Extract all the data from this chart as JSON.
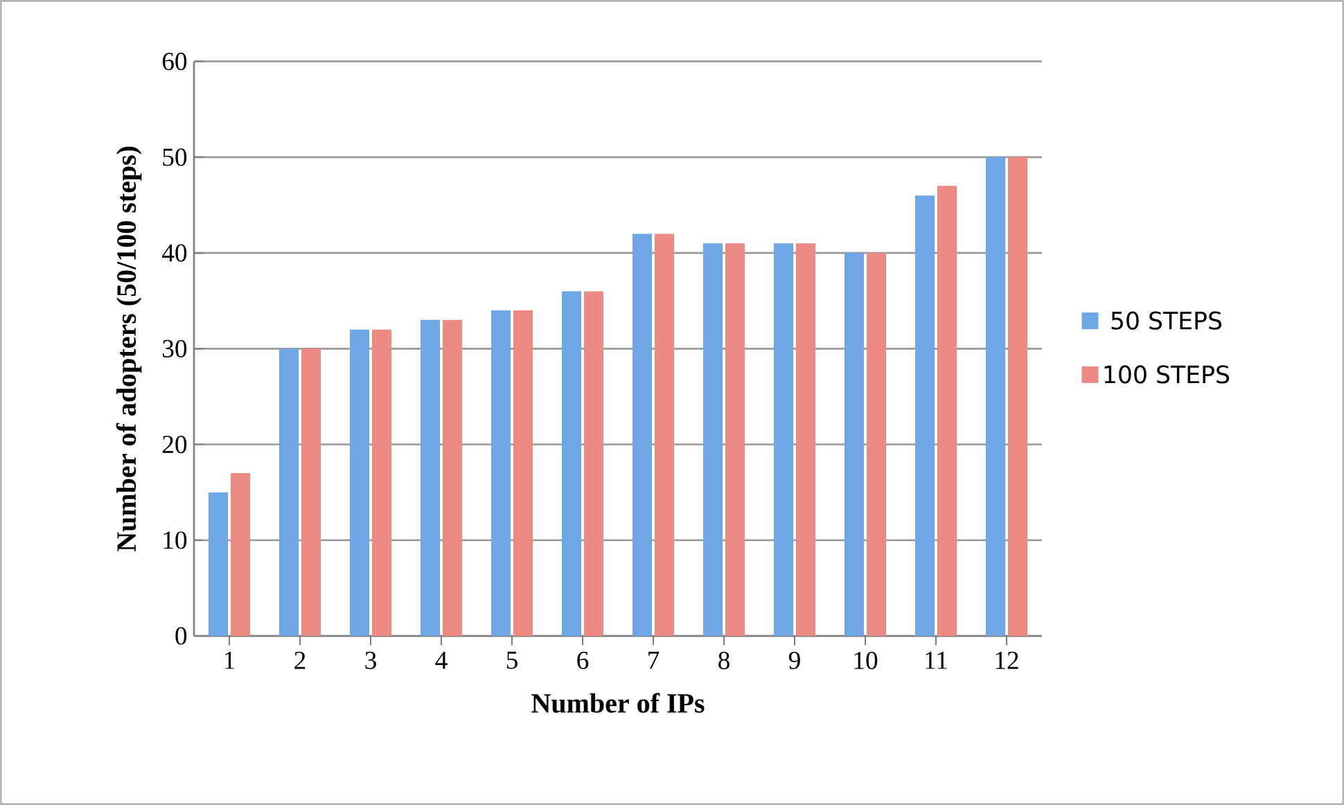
{
  "chart_data": {
    "type": "bar",
    "xlabel": "Number of IPs",
    "ylabel": "Number of adopters (50/100 steps)",
    "categories": [
      "1",
      "2",
      "3",
      "4",
      "5",
      "6",
      "7",
      "8",
      "9",
      "10",
      "11",
      "12"
    ],
    "series": [
      {
        "name": "50 STEPS",
        "color": "#6fa6e6",
        "values": [
          15,
          30,
          32,
          33,
          34,
          36,
          42,
          41,
          41,
          40,
          46,
          50
        ]
      },
      {
        "name": "100 STEPS",
        "color": "#ee8a84",
        "values": [
          17,
          30,
          32,
          33,
          34,
          36,
          42,
          41,
          41,
          40,
          47,
          50
        ]
      }
    ],
    "ylim": [
      0,
      60
    ],
    "yticks": [
      0,
      10,
      20,
      30,
      40,
      50,
      60
    ],
    "grid": "y",
    "legend": "right"
  }
}
